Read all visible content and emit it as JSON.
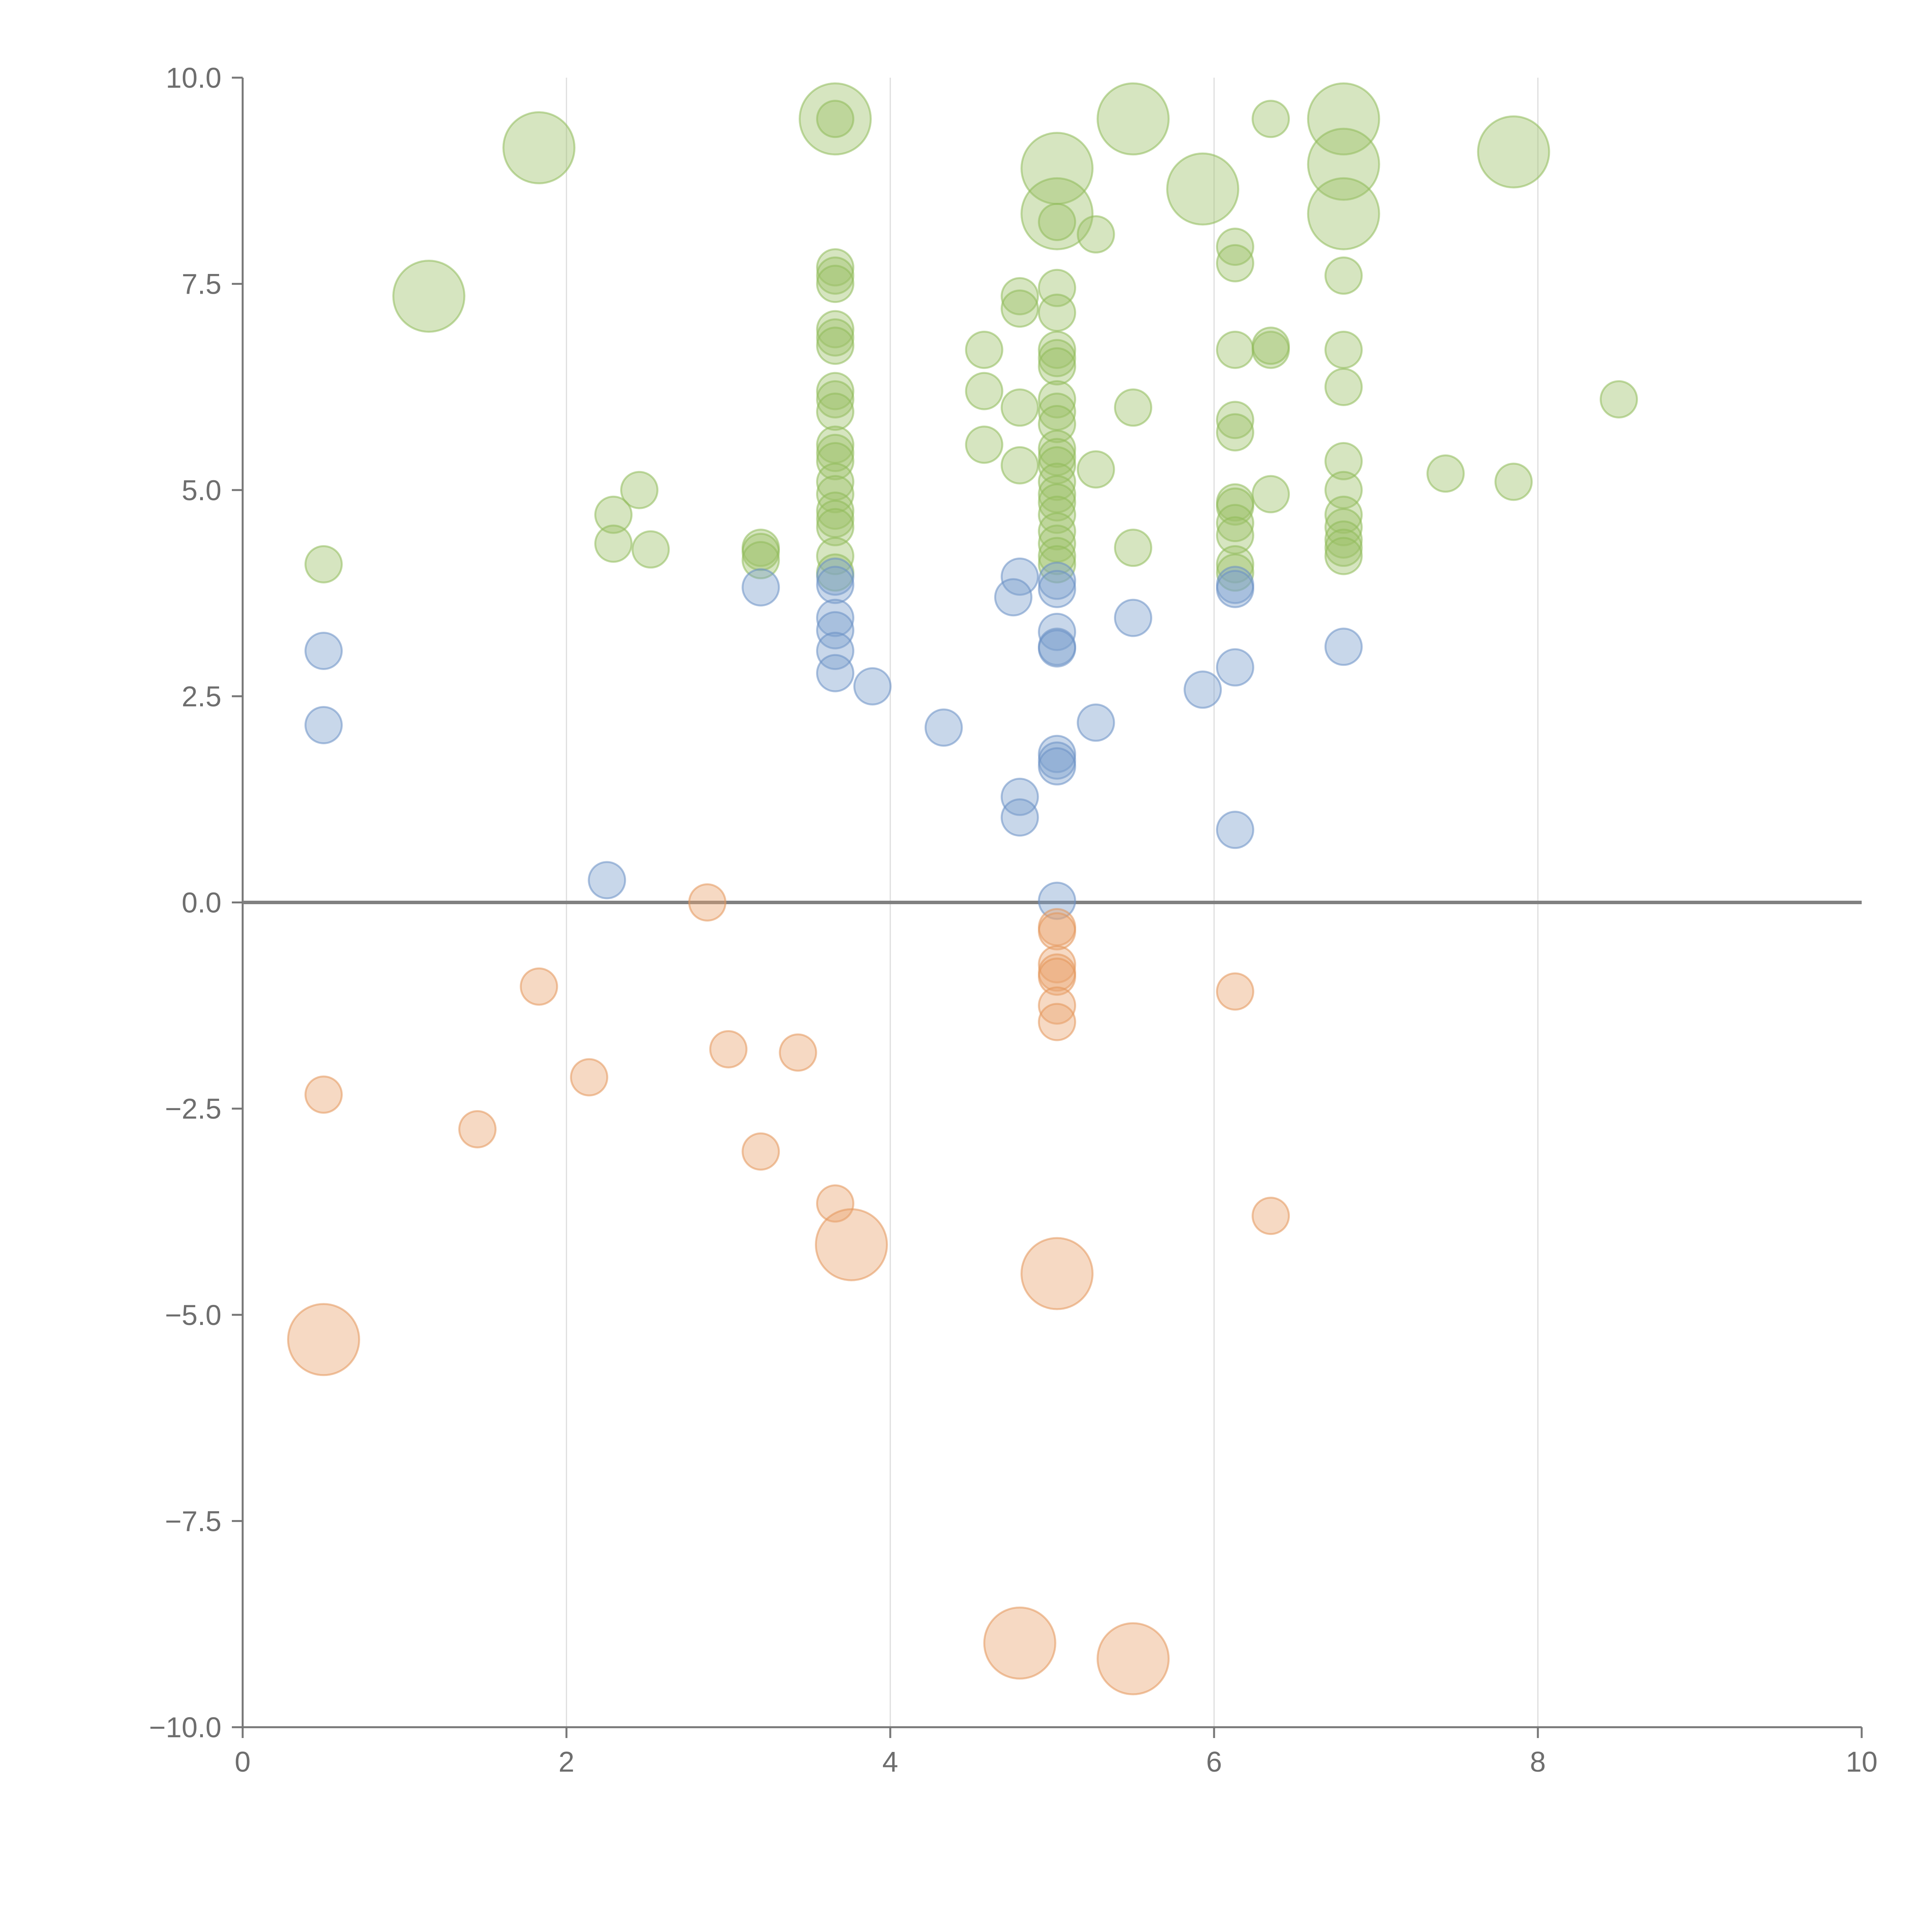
{
  "chart_data": {
    "type": "scatter",
    "title": "",
    "xlabel": "",
    "ylabel": "",
    "xlim": [
      0,
      10
    ],
    "ylim": [
      -10,
      10
    ],
    "x_ticks": [
      0,
      2,
      4,
      6,
      8,
      10
    ],
    "y_ticks": [
      10,
      7.5,
      5,
      2.5,
      0,
      -2.5,
      -5,
      -7.5,
      -10
    ],
    "x_tick_labels": [
      "0",
      "2",
      "4",
      "6",
      "8",
      "10"
    ],
    "y_tick_labels": [
      "10.0",
      "7.5",
      "5.0",
      "2.5",
      "0.0",
      "−2.5",
      "−5.0",
      "−7.5",
      "−10.0"
    ],
    "grid": "vertical",
    "zero_line": true,
    "legend": "none",
    "size_unit_note": "s = relative bubble size (1 = small, 2 = large)",
    "series": [
      {
        "name": "green",
        "color": "#9ec16a",
        "stroke": "#8fbc5a",
        "points": [
          {
            "x": 1.83,
            "y": 9.15,
            "s": 2
          },
          {
            "x": 1.15,
            "y": 7.35,
            "s": 2
          },
          {
            "x": 3.66,
            "y": 9.5,
            "s": 2
          },
          {
            "x": 5.5,
            "y": 9.5,
            "s": 2
          },
          {
            "x": 5.03,
            "y": 8.9,
            "s": 2
          },
          {
            "x": 5.03,
            "y": 8.35,
            "s": 2
          },
          {
            "x": 5.93,
            "y": 8.65,
            "s": 2
          },
          {
            "x": 6.8,
            "y": 9.5,
            "s": 2
          },
          {
            "x": 6.8,
            "y": 8.95,
            "s": 2
          },
          {
            "x": 6.8,
            "y": 8.35,
            "s": 2
          },
          {
            "x": 7.85,
            "y": 9.1,
            "s": 2
          },
          {
            "x": 3.66,
            "y": 9.5,
            "s": 1
          },
          {
            "x": 6.35,
            "y": 9.5,
            "s": 1
          },
          {
            "x": 5.03,
            "y": 8.25,
            "s": 1
          },
          {
            "x": 5.27,
            "y": 8.1,
            "s": 1
          },
          {
            "x": 6.13,
            "y": 7.95,
            "s": 1
          },
          {
            "x": 6.13,
            "y": 7.75,
            "s": 1
          },
          {
            "x": 6.8,
            "y": 7.6,
            "s": 1
          },
          {
            "x": 3.66,
            "y": 7.7,
            "s": 1
          },
          {
            "x": 3.66,
            "y": 7.6,
            "s": 1
          },
          {
            "x": 3.66,
            "y": 7.5,
            "s": 1
          },
          {
            "x": 4.8,
            "y": 7.35,
            "s": 1
          },
          {
            "x": 4.8,
            "y": 7.2,
            "s": 1
          },
          {
            "x": 5.03,
            "y": 7.45,
            "s": 1
          },
          {
            "x": 5.03,
            "y": 7.15,
            "s": 1
          },
          {
            "x": 3.66,
            "y": 6.95,
            "s": 1
          },
          {
            "x": 3.66,
            "y": 6.85,
            "s": 1
          },
          {
            "x": 3.66,
            "y": 6.75,
            "s": 1
          },
          {
            "x": 4.58,
            "y": 6.7,
            "s": 1
          },
          {
            "x": 5.03,
            "y": 6.7,
            "s": 1
          },
          {
            "x": 5.03,
            "y": 6.6,
            "s": 1
          },
          {
            "x": 5.03,
            "y": 6.5,
            "s": 1
          },
          {
            "x": 6.13,
            "y": 6.7,
            "s": 1
          },
          {
            "x": 6.35,
            "y": 6.7,
            "s": 1
          },
          {
            "x": 6.35,
            "y": 6.75,
            "s": 1
          },
          {
            "x": 6.8,
            "y": 6.7,
            "s": 1
          },
          {
            "x": 4.58,
            "y": 6.2,
            "s": 1
          },
          {
            "x": 3.66,
            "y": 6.2,
            "s": 1
          },
          {
            "x": 3.66,
            "y": 6.1,
            "s": 1
          },
          {
            "x": 3.66,
            "y": 5.95,
            "s": 1
          },
          {
            "x": 4.8,
            "y": 6.0,
            "s": 1
          },
          {
            "x": 5.03,
            "y": 6.1,
            "s": 1
          },
          {
            "x": 5.03,
            "y": 5.95,
            "s": 1
          },
          {
            "x": 5.03,
            "y": 5.8,
            "s": 1
          },
          {
            "x": 5.5,
            "y": 6.0,
            "s": 1
          },
          {
            "x": 6.8,
            "y": 6.25,
            "s": 1
          },
          {
            "x": 8.5,
            "y": 6.1,
            "s": 1
          },
          {
            "x": 6.13,
            "y": 5.85,
            "s": 1
          },
          {
            "x": 6.13,
            "y": 5.7,
            "s": 1
          },
          {
            "x": 4.58,
            "y": 5.55,
            "s": 1
          },
          {
            "x": 3.66,
            "y": 5.55,
            "s": 1
          },
          {
            "x": 3.66,
            "y": 5.45,
            "s": 1
          },
          {
            "x": 3.66,
            "y": 5.35,
            "s": 1
          },
          {
            "x": 5.03,
            "y": 5.5,
            "s": 1
          },
          {
            "x": 5.03,
            "y": 5.4,
            "s": 1
          },
          {
            "x": 5.03,
            "y": 5.3,
            "s": 1
          },
          {
            "x": 4.8,
            "y": 5.3,
            "s": 1
          },
          {
            "x": 5.27,
            "y": 5.25,
            "s": 1
          },
          {
            "x": 6.8,
            "y": 5.35,
            "s": 1
          },
          {
            "x": 7.43,
            "y": 5.2,
            "s": 1
          },
          {
            "x": 7.85,
            "y": 5.1,
            "s": 1
          },
          {
            "x": 2.45,
            "y": 5.0,
            "s": 1
          },
          {
            "x": 3.66,
            "y": 5.1,
            "s": 1
          },
          {
            "x": 3.66,
            "y": 4.95,
            "s": 1
          },
          {
            "x": 5.03,
            "y": 5.1,
            "s": 1
          },
          {
            "x": 5.03,
            "y": 4.95,
            "s": 1
          },
          {
            "x": 5.03,
            "y": 4.85,
            "s": 1
          },
          {
            "x": 6.35,
            "y": 4.95,
            "s": 1
          },
          {
            "x": 6.8,
            "y": 5.0,
            "s": 1
          },
          {
            "x": 6.13,
            "y": 4.85,
            "s": 1
          },
          {
            "x": 6.13,
            "y": 4.8,
            "s": 1
          },
          {
            "x": 2.29,
            "y": 4.7,
            "s": 1
          },
          {
            "x": 3.66,
            "y": 4.75,
            "s": 1
          },
          {
            "x": 3.66,
            "y": 4.65,
            "s": 1
          },
          {
            "x": 3.66,
            "y": 4.55,
            "s": 1
          },
          {
            "x": 5.03,
            "y": 4.7,
            "s": 1
          },
          {
            "x": 5.03,
            "y": 4.5,
            "s": 1
          },
          {
            "x": 5.03,
            "y": 4.35,
            "s": 1
          },
          {
            "x": 6.13,
            "y": 4.6,
            "s": 1
          },
          {
            "x": 6.13,
            "y": 4.45,
            "s": 1
          },
          {
            "x": 6.8,
            "y": 4.7,
            "s": 1
          },
          {
            "x": 6.8,
            "y": 4.55,
            "s": 1
          },
          {
            "x": 6.8,
            "y": 4.4,
            "s": 1
          },
          {
            "x": 6.8,
            "y": 4.3,
            "s": 1
          },
          {
            "x": 6.8,
            "y": 4.2,
            "s": 1
          },
          {
            "x": 2.29,
            "y": 4.35,
            "s": 1
          },
          {
            "x": 2.52,
            "y": 4.28,
            "s": 1
          },
          {
            "x": 3.2,
            "y": 4.3,
            "s": 1
          },
          {
            "x": 3.2,
            "y": 4.25,
            "s": 1
          },
          {
            "x": 3.2,
            "y": 4.15,
            "s": 1
          },
          {
            "x": 3.66,
            "y": 4.2,
            "s": 1
          },
          {
            "x": 5.03,
            "y": 4.2,
            "s": 1
          },
          {
            "x": 5.03,
            "y": 4.1,
            "s": 1
          },
          {
            "x": 5.5,
            "y": 4.3,
            "s": 1
          },
          {
            "x": 0.5,
            "y": 4.1,
            "s": 1
          },
          {
            "x": 6.13,
            "y": 4.1,
            "s": 1
          },
          {
            "x": 6.13,
            "y": 4.0,
            "s": 1
          },
          {
            "x": 3.66,
            "y": 4.0,
            "s": 1
          }
        ]
      },
      {
        "name": "blue",
        "color": "#7b9fcd",
        "stroke": "#6a90c4",
        "points": [
          {
            "x": 3.66,
            "y": 3.95,
            "s": 1
          },
          {
            "x": 3.66,
            "y": 3.85,
            "s": 1
          },
          {
            "x": 3.2,
            "y": 3.82,
            "s": 1
          },
          {
            "x": 4.8,
            "y": 3.95,
            "s": 1
          },
          {
            "x": 4.76,
            "y": 3.7,
            "s": 1
          },
          {
            "x": 5.03,
            "y": 3.9,
            "s": 1
          },
          {
            "x": 5.03,
            "y": 3.8,
            "s": 1
          },
          {
            "x": 6.13,
            "y": 3.85,
            "s": 1
          },
          {
            "x": 6.13,
            "y": 3.8,
            "s": 1
          },
          {
            "x": 3.66,
            "y": 3.45,
            "s": 1
          },
          {
            "x": 3.66,
            "y": 3.3,
            "s": 1
          },
          {
            "x": 5.5,
            "y": 3.45,
            "s": 1
          },
          {
            "x": 5.03,
            "y": 3.28,
            "s": 1
          },
          {
            "x": 5.03,
            "y": 3.1,
            "s": 1
          },
          {
            "x": 5.03,
            "y": 3.08,
            "s": 1
          },
          {
            "x": 6.8,
            "y": 3.1,
            "s": 1
          },
          {
            "x": 0.5,
            "y": 3.05,
            "s": 1
          },
          {
            "x": 3.66,
            "y": 3.05,
            "s": 1
          },
          {
            "x": 6.13,
            "y": 2.85,
            "s": 1
          },
          {
            "x": 3.66,
            "y": 2.78,
            "s": 1
          },
          {
            "x": 3.89,
            "y": 2.62,
            "s": 1
          },
          {
            "x": 5.93,
            "y": 2.58,
            "s": 1
          },
          {
            "x": 0.5,
            "y": 2.15,
            "s": 1
          },
          {
            "x": 4.33,
            "y": 2.12,
            "s": 1
          },
          {
            "x": 5.27,
            "y": 2.18,
            "s": 1
          },
          {
            "x": 5.03,
            "y": 1.8,
            "s": 1
          },
          {
            "x": 5.03,
            "y": 1.72,
            "s": 1
          },
          {
            "x": 5.03,
            "y": 1.65,
            "s": 1
          },
          {
            "x": 4.8,
            "y": 1.28,
            "s": 1
          },
          {
            "x": 4.8,
            "y": 1.03,
            "s": 1
          },
          {
            "x": 6.13,
            "y": 0.88,
            "s": 1
          },
          {
            "x": 2.25,
            "y": 0.27,
            "s": 1
          },
          {
            "x": 5.03,
            "y": 0.02,
            "s": 1
          }
        ]
      },
      {
        "name": "orange",
        "color": "#e9a56f",
        "stroke": "#e39659",
        "points": [
          {
            "x": 2.87,
            "y": 0.0,
            "s": 1
          },
          {
            "x": 5.03,
            "y": -0.3,
            "s": 1
          },
          {
            "x": 5.03,
            "y": -0.35,
            "s": 1
          },
          {
            "x": 5.03,
            "y": -0.75,
            "s": 1
          },
          {
            "x": 5.03,
            "y": -0.85,
            "s": 1
          },
          {
            "x": 5.03,
            "y": -0.9,
            "s": 1
          },
          {
            "x": 1.83,
            "y": -1.02,
            "s": 1
          },
          {
            "x": 6.13,
            "y": -1.08,
            "s": 1
          },
          {
            "x": 5.03,
            "y": -1.25,
            "s": 1
          },
          {
            "x": 5.03,
            "y": -1.45,
            "s": 1
          },
          {
            "x": 3.0,
            "y": -1.78,
            "s": 1
          },
          {
            "x": 3.43,
            "y": -1.82,
            "s": 1
          },
          {
            "x": 2.14,
            "y": -2.12,
            "s": 1
          },
          {
            "x": 0.5,
            "y": -2.33,
            "s": 1
          },
          {
            "x": 1.45,
            "y": -2.75,
            "s": 1
          },
          {
            "x": 3.2,
            "y": -3.02,
            "s": 1
          },
          {
            "x": 3.66,
            "y": -3.65,
            "s": 1
          },
          {
            "x": 6.35,
            "y": -3.8,
            "s": 1
          },
          {
            "x": 3.76,
            "y": -4.15,
            "s": 2
          },
          {
            "x": 5.03,
            "y": -4.5,
            "s": 2
          },
          {
            "x": 0.5,
            "y": -5.3,
            "s": 2
          },
          {
            "x": 4.8,
            "y": -8.98,
            "s": 2
          },
          {
            "x": 5.5,
            "y": -9.17,
            "s": 2
          }
        ]
      }
    ]
  }
}
